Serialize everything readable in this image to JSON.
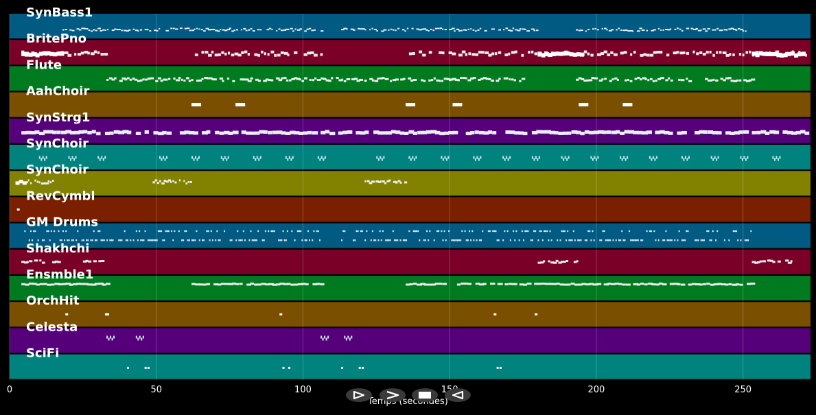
{
  "tracks": [
    {
      "name": "SynBass1",
      "color": "#005a82",
      "pattern": {
        "type": "dense",
        "y": 0.62,
        "spread": 0.12,
        "w": 2,
        "h": 2,
        "gap": 3.2,
        "segments": [
          [
            18,
            106
          ],
          [
            113,
            180
          ],
          [
            193,
            253
          ]
        ]
      }
    },
    {
      "name": "BritePno",
      "color": "#7a0028",
      "pattern": {
        "type": "dense",
        "y": 0.5,
        "spread": 0.15,
        "w": 3,
        "h": 4,
        "gap": 4.5,
        "segments": [
          [
            4,
            33
          ],
          [
            62,
            106
          ],
          [
            135,
            272
          ]
        ],
        "bold": [
          [
            4,
            18
          ],
          [
            180,
            195
          ],
          [
            253,
            270
          ]
        ]
      }
    },
    {
      "name": "Flute",
      "color": "#007a1e",
      "pattern": {
        "type": "dense",
        "y": 0.5,
        "spread": 0.14,
        "w": 3,
        "h": 3,
        "gap": 3.5,
        "segments": [
          [
            33,
            106
          ],
          [
            106,
            150
          ],
          [
            150,
            175
          ],
          [
            193,
            212
          ],
          [
            213,
            232
          ],
          [
            237,
            253
          ]
        ]
      }
    },
    {
      "name": "AahChoir",
      "color": "#7a5000",
      "pattern": {
        "type": "blocks",
        "y": 0.5,
        "w": 14,
        "h": 5,
        "xs": [
          62,
          77,
          135,
          151,
          194,
          209
        ]
      }
    },
    {
      "name": "SynStrg1",
      "color": "#55007a",
      "pattern": {
        "type": "dense",
        "y": 0.5,
        "spread": 0.08,
        "w": 6,
        "h": 5,
        "gap": 6,
        "segments": [
          [
            4,
            272
          ]
        ]
      }
    },
    {
      "name": "SynChoir",
      "color": "#00827e",
      "pattern": {
        "type": "groups",
        "y": 0.5,
        "w": 2,
        "h": 4,
        "xs": [
          10,
          20,
          30,
          51,
          62,
          72,
          83,
          94,
          105,
          125,
          136,
          147,
          158,
          168,
          178,
          188,
          198,
          208,
          218,
          229,
          239,
          249,
          260
        ]
      }
    },
    {
      "name": "SynChoir",
      "color": "#828200",
      "pattern": {
        "type": "dense",
        "y": 0.4,
        "spread": 0.14,
        "w": 2,
        "h": 3,
        "gap": 3,
        "segments": [
          [
            4,
            15
          ],
          [
            48,
            62
          ],
          [
            121,
            135
          ]
        ],
        "bold": [
          [
            2,
            5
          ]
        ]
      }
    },
    {
      "name": "RevCymbl",
      "color": "#7a2000",
      "pattern": {
        "type": "blocks",
        "y": 0.5,
        "w": 4,
        "h": 3,
        "xs": [
          2.5
        ]
      }
    },
    {
      "name": "GM Drums",
      "color": "#005a82",
      "pattern": {
        "type": "drums",
        "segments": [
          [
            4,
            106
          ],
          [
            113,
            135
          ],
          [
            135,
            253
          ]
        ]
      }
    },
    {
      "name": "Shakhchi",
      "color": "#7a0028",
      "pattern": {
        "type": "dense",
        "y": 0.45,
        "spread": 0.1,
        "w": 3,
        "h": 3,
        "gap": 3.5,
        "segments": [
          [
            4,
            18
          ],
          [
            25,
            32
          ],
          [
            180,
            194
          ],
          [
            253,
            267
          ]
        ]
      }
    },
    {
      "name": "Ensmble1",
      "color": "#007a1e",
      "pattern": {
        "type": "dense",
        "y": 0.3,
        "spread": 0.05,
        "w": 5,
        "h": 3,
        "gap": 5,
        "segments": [
          [
            4,
            33
          ],
          [
            62,
            106
          ],
          [
            135,
            253
          ]
        ]
      }
    },
    {
      "name": "OrchHit",
      "color": "#7a5000",
      "pattern": {
        "type": "blocks",
        "y": 0.5,
        "w": 4,
        "h": 3,
        "xs": [
          19,
          32.5,
          33,
          92,
          165,
          179
        ]
      }
    },
    {
      "name": "Celesta",
      "color": "#55007a",
      "pattern": {
        "type": "groups",
        "y": 0.35,
        "w": 2,
        "h": 4,
        "xs": [
          33,
          43,
          106,
          114
        ]
      }
    },
    {
      "name": "SciFi",
      "color": "#00827e",
      "pattern": {
        "type": "blocks",
        "y": 0.55,
        "w": 3,
        "h": 3,
        "xs": [
          40,
          46,
          47,
          93,
          95,
          113,
          119,
          120,
          166,
          167
        ]
      }
    }
  ],
  "x_axis": {
    "label": "Temps (secondes)",
    "max": 273,
    "ticks": [
      0,
      50,
      100,
      150,
      200,
      250
    ]
  },
  "transport": {
    "buttons": [
      {
        "name": "play-icon",
        "shape": "play"
      },
      {
        "name": "forward-icon",
        "shape": "forward"
      },
      {
        "name": "stop-icon",
        "shape": "stop"
      },
      {
        "name": "rewind-icon",
        "shape": "rewind"
      }
    ]
  }
}
